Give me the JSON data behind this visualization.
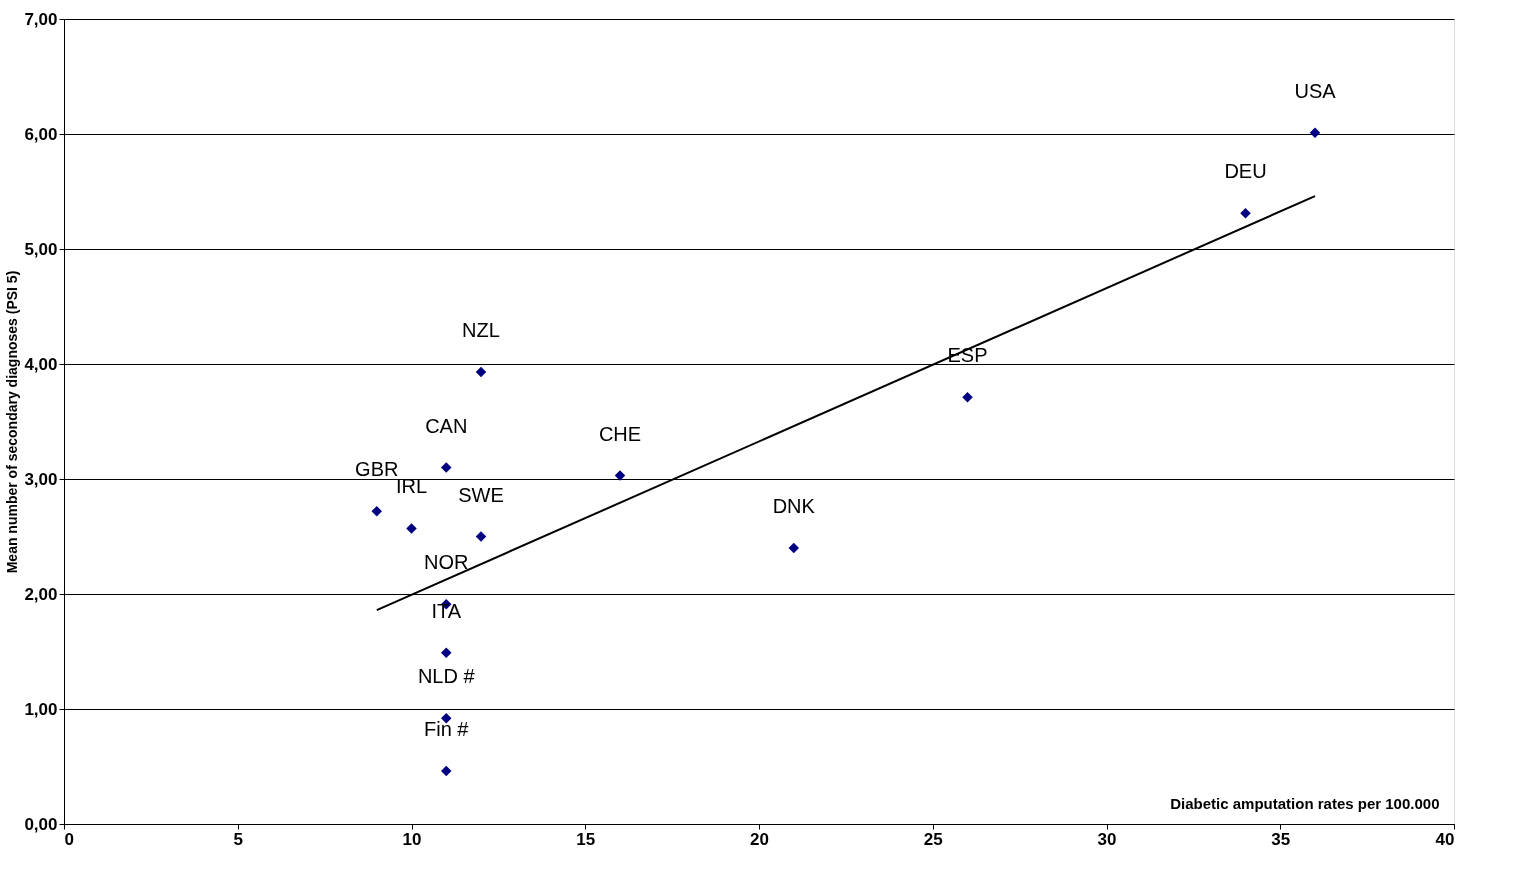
{
  "chart_data": {
    "type": "scatter",
    "ylabel": "Mean number of secondary diagnoses (PSI 5)",
    "xlabel": "Diabetic amputation rates per 100.000",
    "xlim": [
      0,
      40
    ],
    "xticks": [
      0,
      5,
      10,
      15,
      20,
      25,
      30,
      35,
      40
    ],
    "ylim": [
      0,
      7
    ],
    "yticks": [
      {
        "value": 0,
        "label": "0,00"
      },
      {
        "value": 1,
        "label": "1,00"
      },
      {
        "value": 2,
        "label": "2,00"
      },
      {
        "value": 3,
        "label": "3,00"
      },
      {
        "value": 4,
        "label": "4,00"
      },
      {
        "value": 5,
        "label": "5,00"
      },
      {
        "value": 6,
        "label": "6,00"
      },
      {
        "value": 7,
        "label": "7,00"
      }
    ],
    "grid": "y",
    "series": [
      {
        "marker": "diamond",
        "color": "#000080",
        "x": [
          36,
          34,
          26,
          21,
          16,
          12,
          11,
          12,
          9,
          10,
          11,
          11,
          11,
          11
        ],
        "values": [
          6.01,
          5.31,
          3.71,
          2.4,
          3.03,
          3.93,
          3.1,
          2.5,
          2.72,
          2.57,
          1.91,
          1.49,
          0.92,
          0.46
        ]
      },
      {
        "type": "line",
        "color": "#000000",
        "x": [
          9,
          36
        ],
        "values": [
          1.86,
          5.46
        ]
      }
    ],
    "annotations": [
      {
        "text": "USA",
        "x": 36,
        "y": 6.01
      },
      {
        "text": "DEU",
        "x": 34,
        "y": 5.31
      },
      {
        "text": "ESP",
        "x": 26,
        "y": 3.71
      },
      {
        "text": "DNK",
        "x": 21,
        "y": 2.4
      },
      {
        "text": "CHE",
        "x": 16,
        "y": 3.03
      },
      {
        "text": "NZL",
        "x": 12,
        "y": 3.93
      },
      {
        "text": "CAN",
        "x": 11,
        "y": 3.1
      },
      {
        "text": "SWE",
        "x": 12,
        "y": 2.5
      },
      {
        "text": "GBR",
        "x": 9,
        "y": 2.72
      },
      {
        "text": "IRL",
        "x": 10,
        "y": 2.57
      },
      {
        "text": "NOR",
        "x": 11,
        "y": 1.91
      },
      {
        "text": "ITA",
        "x": 11,
        "y": 1.49
      },
      {
        "text": "NLD #",
        "x": 11,
        "y": 0.92
      },
      {
        "text": "Fin #",
        "x": 11,
        "y": 0.46
      }
    ]
  }
}
